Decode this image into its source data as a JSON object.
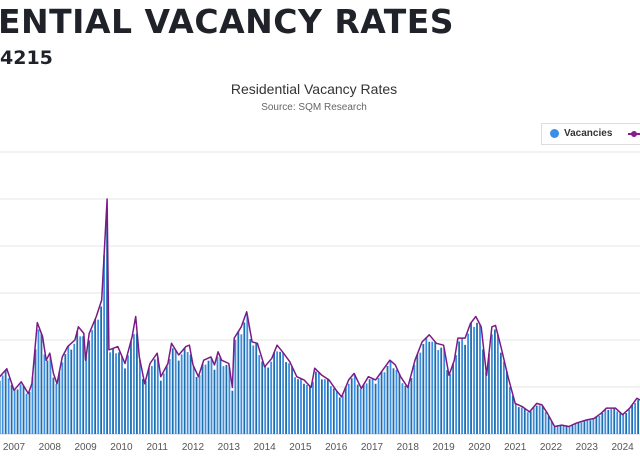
{
  "page": {
    "heading": "ENTIAL VACANCY RATES",
    "subheading": "4215"
  },
  "chart_data": {
    "type": "bar+line",
    "title": "Residential Vacancy Rates",
    "subtitle": "Source: SQM Research",
    "legend": {
      "placement": "top-right",
      "entries": [
        "Vacancies"
      ]
    },
    "colors": {
      "bars": "#3b8de6",
      "bars_dark": "#1e6fa8",
      "line": "#7b1a86",
      "grid": "#e6e6e6"
    },
    "x_tick_labels": [
      "2007",
      "2008",
      "2009",
      "2010",
      "2011",
      "2012",
      "2013",
      "2014",
      "2015",
      "2016",
      "2017",
      "2018",
      "2019",
      "2020",
      "2021",
      "2022",
      "2023",
      "2024"
    ],
    "xlim": [
      2006.6,
      2024.5
    ],
    "ylim": [
      0,
      6
    ],
    "y_units_note": "gridline steps",
    "series": [
      {
        "name": "Vacancies",
        "kind": "line",
        "x": [
          2006.6,
          2006.8,
          2007.0,
          2007.2,
          2007.4,
          2007.5,
          2007.65,
          2007.8,
          2007.9,
          2008.0,
          2008.1,
          2008.2,
          2008.35,
          2008.5,
          2008.7,
          2008.8,
          2008.95,
          2009.0,
          2009.1,
          2009.3,
          2009.45,
          2009.6,
          2009.65,
          2009.9,
          2010.1,
          2010.3,
          2010.4,
          2010.5,
          2010.65,
          2010.8,
          2011.0,
          2011.1,
          2011.3,
          2011.4,
          2011.6,
          2011.8,
          2011.9,
          2012.0,
          2012.15,
          2012.3,
          2012.5,
          2012.6,
          2012.7,
          2012.8,
          2013.0,
          2013.1,
          2013.15,
          2013.35,
          2013.5,
          2013.65,
          2013.8,
          2014.0,
          2014.2,
          2014.35,
          2014.5,
          2014.7,
          2014.9,
          2015.1,
          2015.3,
          2015.4,
          2015.6,
          2015.8,
          2016.0,
          2016.15,
          2016.35,
          2016.5,
          2016.7,
          2016.9,
          2017.1,
          2017.3,
          2017.5,
          2017.65,
          2017.8,
          2018.0,
          2018.2,
          2018.4,
          2018.6,
          2018.8,
          2019.0,
          2019.15,
          2019.3,
          2019.4,
          2019.6,
          2019.75,
          2019.9,
          2020.05,
          2020.2,
          2020.35,
          2020.45,
          2020.6,
          2020.8,
          2021.0,
          2021.2,
          2021.4,
          2021.6,
          2021.75,
          2021.9,
          2022.1,
          2022.3,
          2022.5,
          2022.7,
          2023.0,
          2023.2,
          2023.4,
          2023.55,
          2023.8,
          2024.0,
          2024.2,
          2024.4,
          2024.5
        ],
        "values": [
          1.22,
          1.39,
          0.93,
          1.11,
          0.86,
          1.07,
          2.37,
          2.07,
          1.57,
          1.72,
          1.29,
          1.07,
          1.64,
          1.86,
          2.0,
          2.28,
          2.14,
          1.57,
          2.14,
          2.5,
          2.85,
          5.0,
          1.79,
          1.86,
          1.5,
          2.07,
          2.5,
          1.64,
          1.07,
          1.5,
          1.72,
          1.22,
          1.5,
          1.93,
          1.68,
          1.86,
          1.89,
          1.47,
          1.22,
          1.57,
          1.64,
          1.47,
          1.75,
          1.57,
          1.5,
          0.99,
          2.04,
          2.28,
          2.6,
          1.96,
          1.93,
          1.43,
          1.61,
          1.89,
          1.75,
          1.54,
          1.22,
          1.15,
          0.99,
          1.4,
          1.25,
          1.15,
          0.93,
          0.79,
          1.15,
          1.29,
          0.97,
          1.22,
          1.15,
          1.36,
          1.57,
          1.47,
          1.22,
          0.99,
          1.57,
          1.96,
          2.11,
          1.93,
          1.89,
          1.25,
          1.57,
          2.04,
          2.04,
          2.35,
          2.5,
          2.28,
          1.25,
          2.28,
          2.31,
          1.86,
          1.22,
          0.65,
          0.58,
          0.47,
          0.65,
          0.62,
          0.44,
          0.16,
          0.19,
          0.16,
          0.23,
          0.3,
          0.33,
          0.44,
          0.55,
          0.55,
          0.41,
          0.55,
          0.76,
          0.72
        ]
      }
    ]
  }
}
